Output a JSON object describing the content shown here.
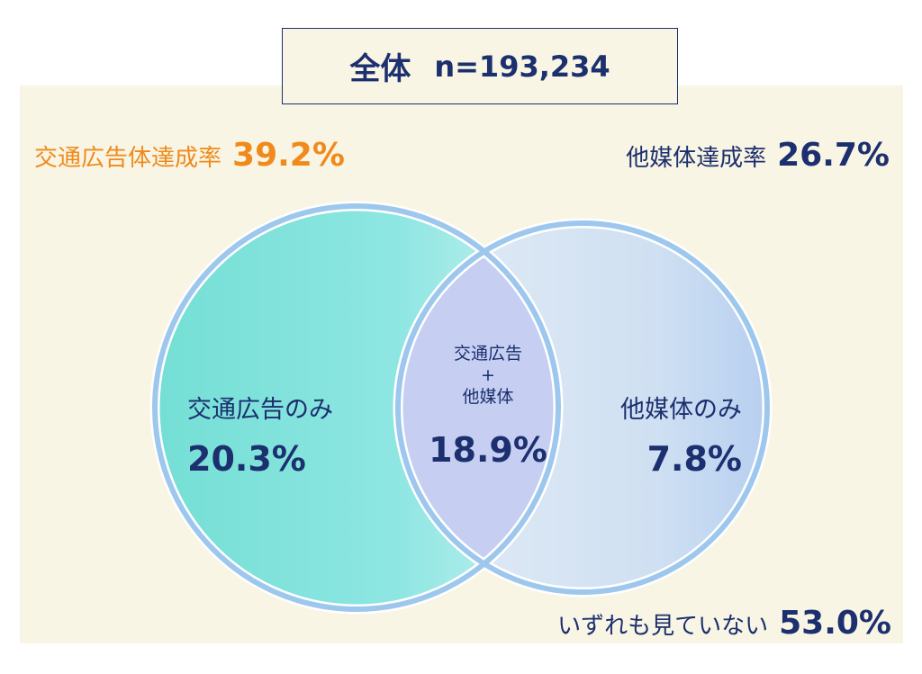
{
  "header": {
    "title": "全体",
    "n_label": "n=193,234"
  },
  "rates": {
    "transit": {
      "label": "交通広告体達成率",
      "value": "39.2%"
    },
    "other": {
      "label": "他媒体達成率",
      "value": "26.7%"
    },
    "none": {
      "label": "いずれも見ていない",
      "value": "53.0%"
    }
  },
  "regions": {
    "transit_only": {
      "label": "交通広告のみ",
      "value": "20.3%"
    },
    "both": {
      "label_line1": "交通広告",
      "label_plus": "+",
      "label_line2": "他媒体",
      "value": "18.9%"
    },
    "other_only": {
      "label": "他媒体のみ",
      "value": "7.8%"
    }
  },
  "colors": {
    "navy": "#1c2f6e",
    "orange": "#f08a1c",
    "panel": "#f8f5e4",
    "ring": "#9ec7ee",
    "transit_fill": "#7fe0d8",
    "other_fill": "#cfe0f2",
    "overlap_fill": "#c6cff2"
  }
}
